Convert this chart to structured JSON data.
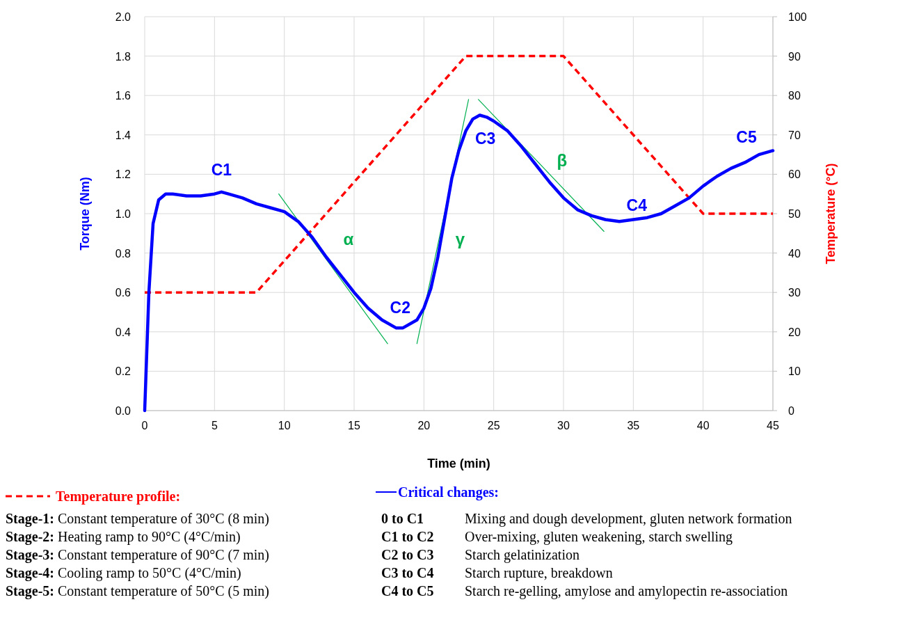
{
  "chart_data": {
    "type": "line",
    "xlabel": "Time (min)",
    "ylabel": "Torque (Nm)",
    "y2label": "Temperature (°C)",
    "xlim": [
      0,
      45
    ],
    "xticks": [
      0,
      5,
      10,
      15,
      20,
      25,
      30,
      35,
      40,
      45
    ],
    "ylim": [
      0,
      2
    ],
    "yticks": [
      {
        "value": 0,
        "label": "0.0"
      },
      {
        "value": 0.2,
        "label": "0.2"
      },
      {
        "value": 0.4,
        "label": "0.4"
      },
      {
        "value": 0.6,
        "label": "0.6"
      },
      {
        "value": 0.8,
        "label": "0.8"
      },
      {
        "value": 1,
        "label": "1.0"
      },
      {
        "value": 1.2,
        "label": "1.2"
      },
      {
        "value": 1.4,
        "label": "1.4"
      },
      {
        "value": 1.6,
        "label": "1.6"
      },
      {
        "value": 1.8,
        "label": "1.8"
      },
      {
        "value": 2,
        "label": "2.0"
      }
    ],
    "y2lim": [
      0,
      100
    ],
    "y2ticks": [
      0,
      10,
      20,
      30,
      40,
      50,
      60,
      70,
      80,
      90,
      100
    ],
    "grid": true,
    "legend": "bottom",
    "series": [
      {
        "name": "Critical changes:",
        "color": "#0000ff",
        "line_style": "solid",
        "x": [
          0,
          0.3,
          0.6,
          1,
          1.5,
          2,
          3,
          4,
          5,
          5.5,
          6,
          7,
          8,
          9,
          10,
          11,
          12,
          13,
          14,
          15,
          16,
          17,
          18,
          18.5,
          19.5,
          20,
          20.5,
          21,
          21.5,
          22,
          22.5,
          23,
          23.5,
          24,
          24.5,
          25,
          26,
          27,
          28,
          29,
          30,
          31,
          32,
          33,
          34,
          35,
          36,
          37,
          38,
          39,
          40,
          41,
          42,
          43,
          44,
          45
        ],
        "values": [
          0,
          0.6,
          0.95,
          1.07,
          1.1,
          1.1,
          1.09,
          1.09,
          1.1,
          1.11,
          1.1,
          1.08,
          1.05,
          1.03,
          1.01,
          0.96,
          0.88,
          0.78,
          0.69,
          0.6,
          0.52,
          0.46,
          0.42,
          0.42,
          0.46,
          0.52,
          0.62,
          0.78,
          0.98,
          1.18,
          1.32,
          1.42,
          1.48,
          1.5,
          1.49,
          1.47,
          1.42,
          1.34,
          1.25,
          1.16,
          1.08,
          1.02,
          0.99,
          0.97,
          0.96,
          0.97,
          0.98,
          1,
          1.04,
          1.08,
          1.14,
          1.19,
          1.23,
          1.26,
          1.3,
          1.32
        ]
      },
      {
        "name": "Temperature profile:",
        "color": "#ff0000",
        "line_style": "dashed",
        "axis": "y2",
        "x": [
          0,
          8,
          23,
          30,
          40,
          45
        ],
        "values": [
          30,
          30,
          90,
          90,
          50,
          50
        ]
      },
      {
        "type": "line",
        "color": "#00b050",
        "line_style": "solid",
        "x": [
          9.6,
          17.4
        ],
        "values": [
          1.1,
          0.34
        ]
      },
      {
        "type": "line",
        "color": "#00b050",
        "line_style": "solid",
        "x": [
          19.5,
          23.2
        ],
        "values": [
          0.34,
          1.58
        ]
      },
      {
        "type": "line",
        "color": "#00b050",
        "line_style": "solid",
        "x": [
          23.9,
          32.9
        ],
        "values": [
          1.58,
          0.91
        ]
      }
    ],
    "annotations": [
      {
        "text": "C1",
        "x": 5.5,
        "y": 1.11
      },
      {
        "text": "C2",
        "x": 18.5,
        "y": 0.42
      },
      {
        "text": "C3",
        "x": 24,
        "y": 1.5
      },
      {
        "text": "C4",
        "x": 34,
        "y": 0.96
      },
      {
        "text": "C5",
        "x": 45,
        "y": 1.32
      },
      {
        "text": "α",
        "x": 13.2,
        "y": 0.75
      },
      {
        "text": "β",
        "x": 28.1,
        "y": 1.27
      },
      {
        "text": "γ",
        "x": 21.1,
        "y": 0.87
      },
      "Stage-1: Constant temperature of 30°C (8 min)",
      "Stage-2: Heating ramp to 90°C (4°C/min)",
      "Stage-3: Constant temperature of 90°C (7 min)",
      "Stage-4: Cooling ramp to 50°C (4°C/min)",
      "Stage-5: Constant temperature of 50°C (5 min)",
      "0 to C1 Mixing and dough development, gluten network formation",
      "C1 to C2 Over-mixing, gluten weakening, starch swelling",
      "C2 to C3 Starch gelatinization",
      "C3 to C4 Starch rupture, breakdown",
      "C4 to C5 Starch re-gelling, amylose and amylopectin re-association"
    ]
  }
}
